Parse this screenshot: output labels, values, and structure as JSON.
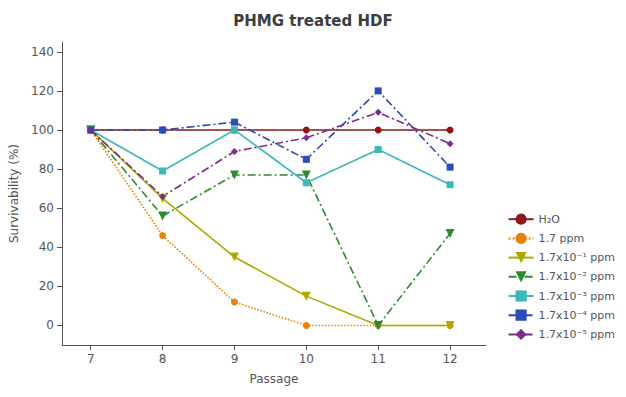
{
  "chart_data": {
    "type": "line",
    "title": "PHMG treated HDF",
    "xlabel": "Passage",
    "ylabel": "Survivability (%)",
    "x": [
      7,
      8,
      9,
      10,
      11,
      12
    ],
    "series": [
      {
        "name": "H₂O",
        "color": "#8B1A1A",
        "values": [
          100,
          100,
          100,
          100,
          100,
          100
        ],
        "marker": "circle",
        "line_style": "solid"
      },
      {
        "name": "1.7 ppm",
        "color": "#E8820A",
        "values": [
          100,
          46,
          12,
          0,
          0,
          0
        ],
        "marker": "circle",
        "line_style": "dotted"
      },
      {
        "name": "1.7x10⁻¹ ppm",
        "color": "#AAAA00",
        "values": [
          100,
          65,
          35,
          15,
          0,
          0
        ],
        "marker": "triangle-down",
        "line_style": "solid"
      },
      {
        "name": "1.7x10⁻² ppm",
        "color": "#2E8B2E",
        "values": [
          100,
          56,
          77,
          77,
          0,
          47
        ],
        "marker": "triangle-down",
        "line_style": "dashdot"
      },
      {
        "name": "1.7x10⁻³ ppm",
        "color": "#3CB8B8",
        "values": [
          100,
          79,
          100,
          73,
          90,
          72
        ],
        "marker": "square",
        "line_style": "solid"
      },
      {
        "name": "1.7x10⁻⁴ ppm",
        "color": "#2B4BB5",
        "values": [
          100,
          100,
          104,
          85,
          120,
          81
        ],
        "marker": "square",
        "line_style": "dashdot"
      },
      {
        "name": "1.7x10⁻⁵ ppm",
        "color": "#7B2D8B",
        "values": [
          100,
          66,
          89,
          96,
          109,
          93
        ],
        "marker": "diamond",
        "line_style": "dashdot"
      }
    ],
    "xlim": [
      6.6,
      12.5
    ],
    "xticks": [
      7,
      8,
      9,
      10,
      11,
      12
    ],
    "ylim": [
      -10,
      145
    ],
    "yticks": [
      0,
      20,
      40,
      60,
      80,
      100,
      120,
      140
    ],
    "legend": "lower right",
    "grid": false
  }
}
